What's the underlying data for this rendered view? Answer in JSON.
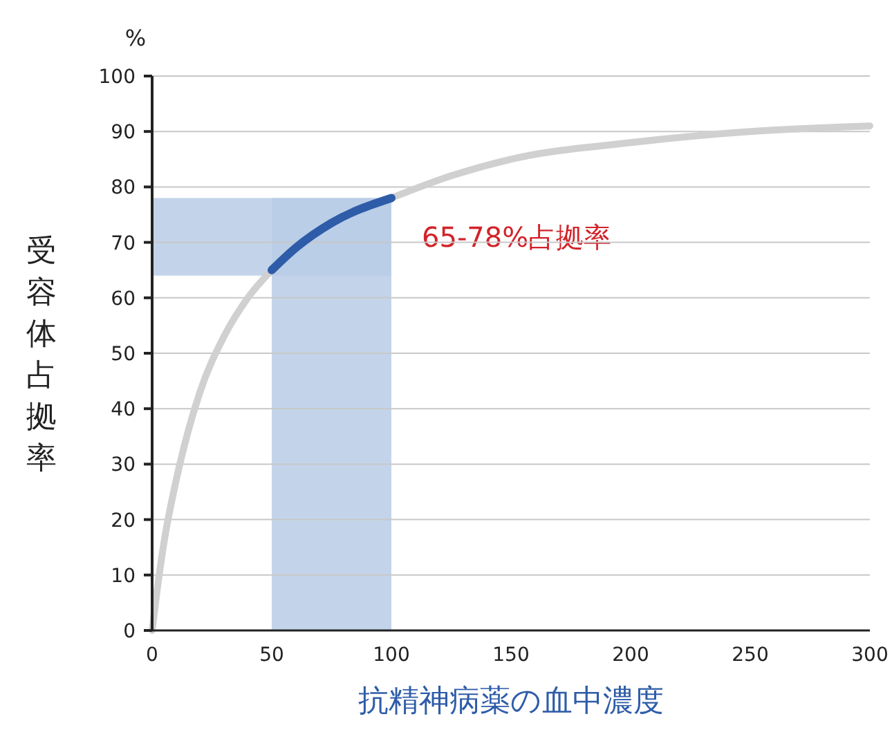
{
  "chart_data": {
    "type": "line",
    "ylabel": "受容体占拠率",
    "xlabel": "抗精神病薬の血中濃度",
    "annotations": [
      "%"
    ],
    "xlim": [
      0,
      300
    ],
    "xticks": [
      0,
      50,
      100,
      150,
      200,
      250,
      300
    ],
    "ylim": [
      0,
      100
    ],
    "yticks": [
      0,
      10,
      20,
      30,
      40,
      50,
      60,
      70,
      80,
      90,
      100
    ],
    "grid": "y",
    "marker": "none",
    "series": [
      {
        "color": "#d0d0d0",
        "x": [
          0,
          2,
          5,
          10,
          20,
          30,
          40,
          50,
          60,
          75,
          100,
          125,
          150,
          200,
          250,
          300
        ],
        "values": [
          0,
          7,
          16,
          27,
          43,
          53,
          60,
          65,
          69,
          73.5,
          78,
          82,
          85,
          88,
          90,
          91
        ]
      },
      {
        "color": "#2e5ca8",
        "x": [
          50,
          60,
          75,
          100
        ],
        "values": [
          65,
          69,
          73.5,
          78
        ]
      }
    ],
    "bands": [
      {
        "axis": "x",
        "from": 50,
        "to": 100,
        "color": "#b8cde6"
      },
      {
        "axis": "y",
        "from": 64,
        "to": 78,
        "color": "#b8cde6",
        "label": "65-78%占拠率"
      }
    ]
  }
}
